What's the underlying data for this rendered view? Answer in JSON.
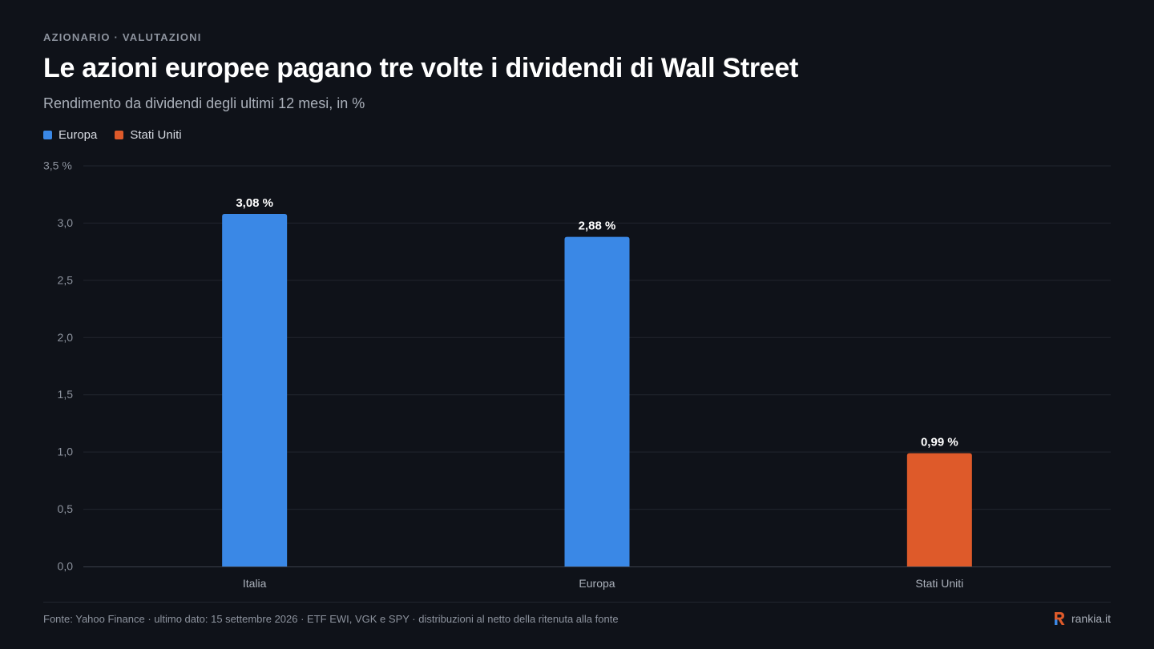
{
  "header": {
    "kicker": "AZIONARIO · VALUTAZIONI",
    "title": "Le azioni europee pagano tre volte i dividendi di Wall Street",
    "subtitle": "Rendimento da dividendi degli ultimi 12 mesi, in %"
  },
  "legend": [
    {
      "label": "Europa",
      "color": "#3a88e6"
    },
    {
      "label": "Stati Uniti",
      "color": "#de5a2a"
    }
  ],
  "chart_data": {
    "type": "bar",
    "categories": [
      "Italia",
      "Europa",
      "Stati Uniti"
    ],
    "values": [
      3.08,
      2.88,
      0.99
    ],
    "value_labels": [
      "3,08 %",
      "2,88 %",
      "0,99 %"
    ],
    "bar_colors": [
      "#3a88e6",
      "#3a88e6",
      "#de5a2a"
    ],
    "ylim": [
      0,
      3.5
    ],
    "yticks": [
      0,
      0.5,
      1.0,
      1.5,
      2.0,
      2.5,
      3.0,
      3.5
    ],
    "ytick_labels": [
      "0,0",
      "0,5",
      "1,0",
      "1,5",
      "2,0",
      "2,5",
      "3,0",
      "3,5 %"
    ],
    "grid": true,
    "legend_position": "top-left"
  },
  "footer": {
    "source": "Fonte: Yahoo Finance · ultimo dato: 15 settembre 2026 · ETF EWI, VGK e SPY · distribuzioni al netto della ritenuta alla fonte",
    "brand": "rankia.it"
  },
  "colors": {
    "background": "#0f1219",
    "grid": "#22262f",
    "axis": "#3a3f4a",
    "tick_text": "#8d939e",
    "brand_logo": "#de5a2a"
  }
}
